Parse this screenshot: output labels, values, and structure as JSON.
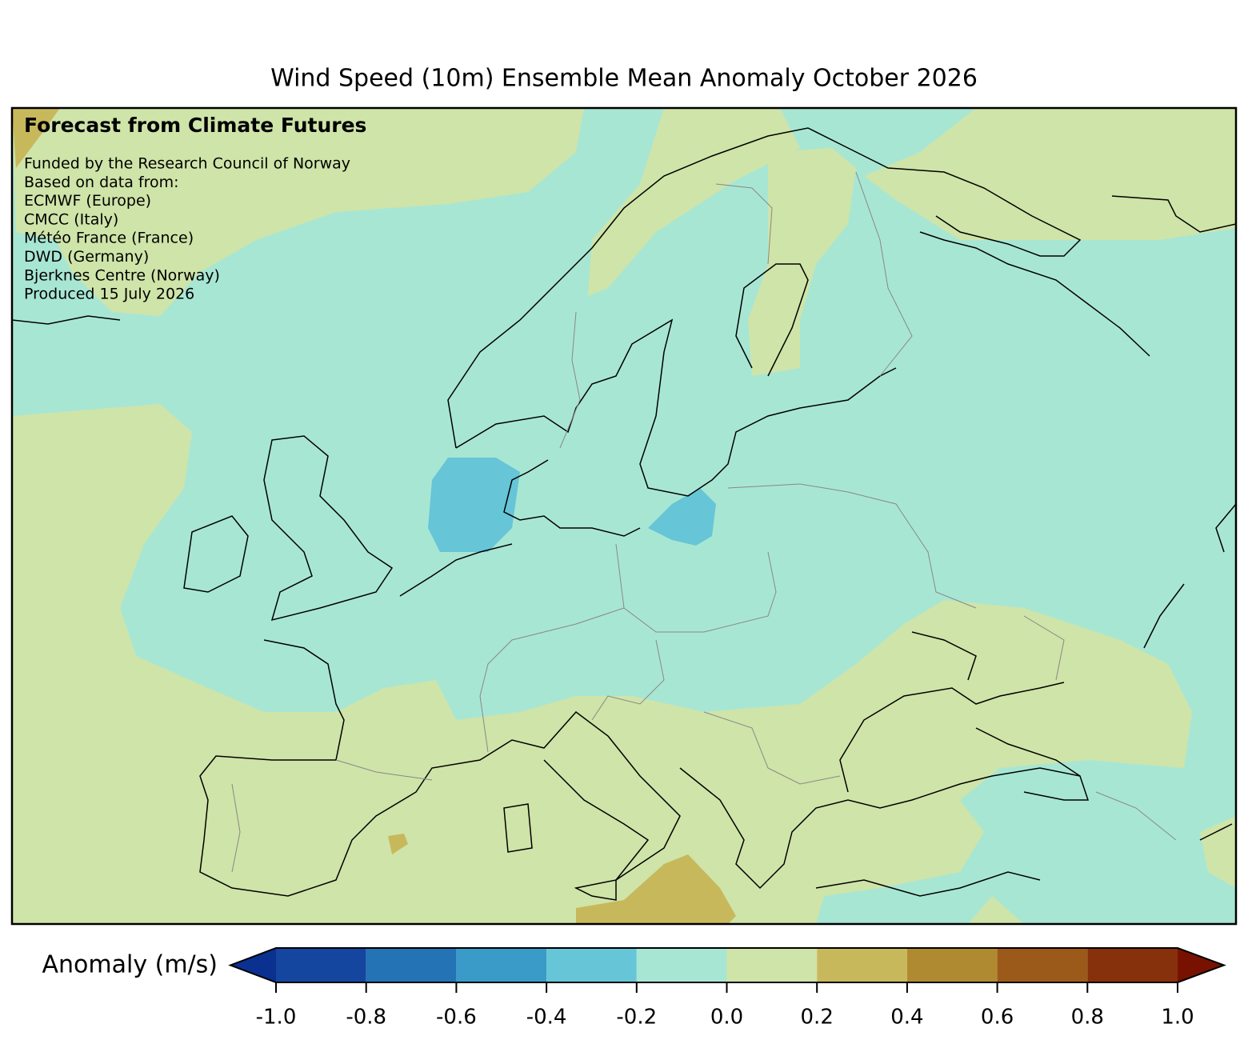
{
  "chart_data": {
    "type": "map",
    "title": "Wind Speed (10m) Ensemble Mean Anomaly October 2026",
    "annotations": {
      "heading": "Forecast from Climate Futures",
      "lines": [
        "Funded by the Research Council of Norway",
        "Based on data from:",
        "ECMWF (Europe)",
        "CMCC (Italy)",
        "Météo France (France)",
        "DWD (Germany)",
        "Bjerknes Centre (Norway)",
        "Produced 15 July 2026"
      ]
    },
    "colorbar": {
      "label": "Anomaly (m/s)",
      "clim": [
        -1,
        1
      ],
      "ticks": [
        {
          "value": -1,
          "label": "-1.0"
        },
        {
          "value": -0.8,
          "label": "-0.8"
        },
        {
          "value": -0.6,
          "label": "-0.6"
        },
        {
          "value": -0.4,
          "label": "-0.4"
        },
        {
          "value": -0.2,
          "label": "-0.2"
        },
        {
          "value": 0,
          "label": "0.0"
        },
        {
          "value": 0.2,
          "label": "0.2"
        },
        {
          "value": 0.4,
          "label": "0.4"
        },
        {
          "value": 0.6,
          "label": "0.6"
        },
        {
          "value": 0.8,
          "label": "0.8"
        },
        {
          "value": 1,
          "label": "1.0"
        }
      ],
      "colors": [
        "#1446a0",
        "#2473b5",
        "#3a9bc8",
        "#66c5d6",
        "#a8e6d4",
        "#cfe4a8",
        "#c8b85c",
        "#b08a30",
        "#9c5a1a",
        "#86300c"
      ],
      "extend_colors": [
        "#0a3090",
        "#781200"
      ]
    }
  }
}
